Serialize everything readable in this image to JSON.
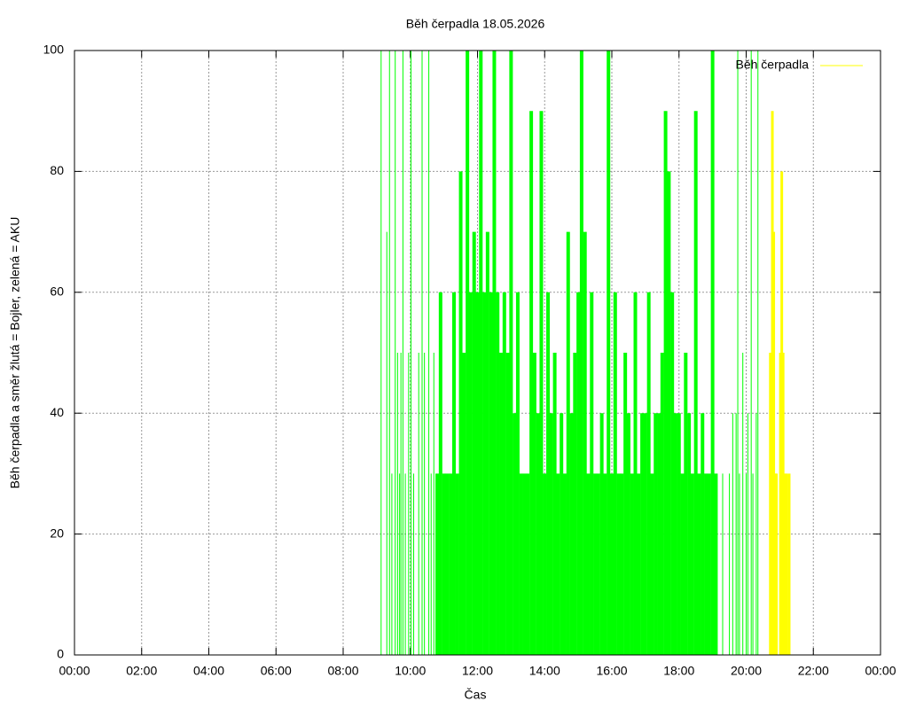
{
  "chart_data": {
    "type": "impulses",
    "title": "Běh čerpadla 18.05.2026",
    "x_label": "Čas",
    "y_label": "Běh čerpadla a směr žlutá = Bojler, zelená = AKU",
    "xlim": [
      0,
      24
    ],
    "ylim": [
      0,
      100
    ],
    "xticks": [
      {
        "value": 0,
        "label": "00:00"
      },
      {
        "value": 2,
        "label": "02:00"
      },
      {
        "value": 4,
        "label": "04:00"
      },
      {
        "value": 6,
        "label": "06:00"
      },
      {
        "value": 8,
        "label": "08:00"
      },
      {
        "value": 10,
        "label": "10:00"
      },
      {
        "value": 12,
        "label": "12:00"
      },
      {
        "value": 14,
        "label": "14:00"
      },
      {
        "value": 16,
        "label": "16:00"
      },
      {
        "value": 18,
        "label": "18:00"
      },
      {
        "value": 20,
        "label": "20:00"
      },
      {
        "value": 22,
        "label": "22:00"
      },
      {
        "value": 24,
        "label": "00:00"
      }
    ],
    "yticks": [
      0,
      20,
      40,
      60,
      80,
      100
    ],
    "grid": true,
    "legend": "top-right",
    "series": [
      {
        "color": "#00ff00",
        "x": [
          9.13,
          9.3,
          9.38,
          9.45,
          9.55,
          9.62,
          9.68,
          9.72,
          9.78,
          9.85,
          9.95,
          10.02,
          10.1,
          10.25,
          10.35,
          10.42,
          10.55,
          10.62,
          10.7,
          10.8,
          10.9,
          11.0,
          11.1,
          11.2,
          11.3,
          11.4,
          11.5,
          11.6,
          11.7,
          11.8,
          11.9,
          12.0,
          12.1,
          12.2,
          12.3,
          12.4,
          12.5,
          12.6,
          12.7,
          12.8,
          12.9,
          13.0,
          13.1,
          13.2,
          13.3,
          13.4,
          13.5,
          13.6,
          13.7,
          13.8,
          13.9,
          14.0,
          14.1,
          14.2,
          14.3,
          14.4,
          14.5,
          14.6,
          14.7,
          14.8,
          14.9,
          15.0,
          15.1,
          15.2,
          15.3,
          15.4,
          15.5,
          15.6,
          15.7,
          15.8,
          15.9,
          16.0,
          16.1,
          16.2,
          16.3,
          16.4,
          16.5,
          16.6,
          16.7,
          16.8,
          16.9,
          17.0,
          17.1,
          17.2,
          17.3,
          17.4,
          17.5,
          17.6,
          17.7,
          17.8,
          17.9,
          18.0,
          18.1,
          18.2,
          18.3,
          18.4,
          18.5,
          18.6,
          18.7,
          18.8,
          18.9,
          19.0,
          19.1,
          19.3,
          19.5,
          19.6,
          19.7,
          19.75,
          19.8,
          19.9,
          20.0,
          20.05,
          20.15,
          20.2,
          20.3,
          20.35
        ],
        "values": [
          100,
          70,
          100,
          30,
          100,
          50,
          30,
          50,
          100,
          30,
          50,
          100,
          30,
          50,
          100,
          50,
          100,
          30,
          50,
          30,
          60,
          30,
          30,
          30,
          60,
          30,
          80,
          50,
          100,
          60,
          70,
          60,
          100,
          60,
          70,
          60,
          100,
          60,
          50,
          60,
          50,
          100,
          40,
          60,
          30,
          30,
          30,
          90,
          50,
          40,
          90,
          30,
          60,
          40,
          50,
          30,
          40,
          30,
          70,
          40,
          50,
          60,
          100,
          70,
          30,
          60,
          30,
          30,
          40,
          30,
          100,
          30,
          60,
          30,
          30,
          50,
          40,
          30,
          60,
          30,
          40,
          40,
          60,
          30,
          40,
          40,
          50,
          90,
          80,
          60,
          40,
          40,
          30,
          50,
          40,
          30,
          90,
          30,
          40,
          30,
          30,
          100,
          30,
          30,
          30,
          40,
          40,
          100,
          30,
          50,
          30,
          40,
          100,
          30,
          40,
          100
        ]
      },
      {
        "name": "Běh čerpadla",
        "color": "#ffff00",
        "x": [
          20.72,
          20.78,
          20.82,
          20.86,
          20.9,
          21.02,
          21.06,
          21.1,
          21.15,
          21.2,
          21.28
        ],
        "values": [
          50,
          90,
          70,
          30,
          30,
          50,
          80,
          50,
          30,
          30,
          30
        ]
      }
    ]
  }
}
